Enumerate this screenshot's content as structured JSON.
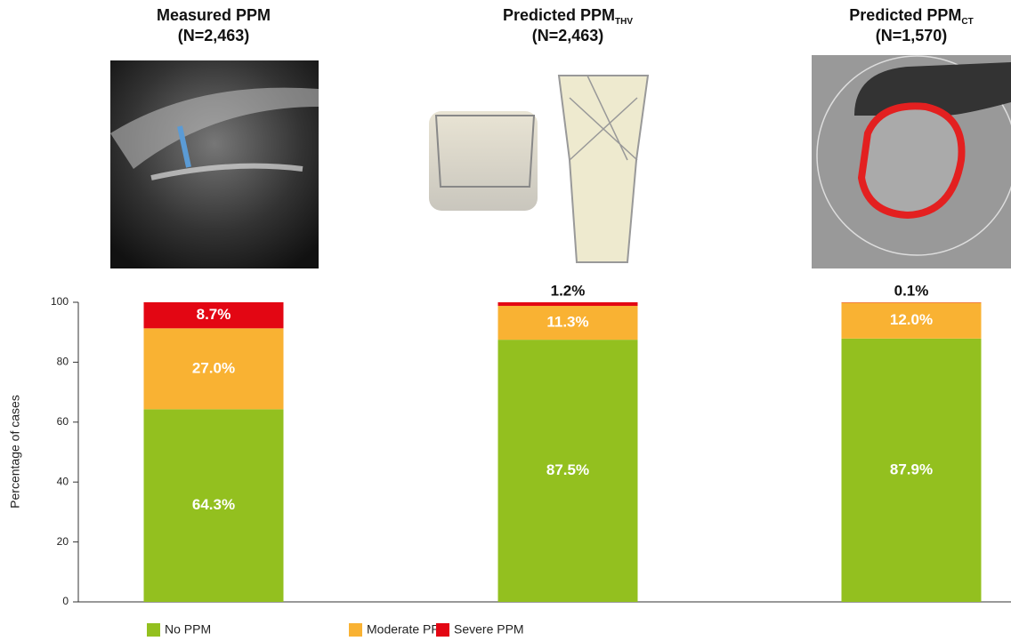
{
  "chart_data": {
    "type": "bar",
    "stacked": true,
    "categories": [
      "Measured PPM",
      "Predicted PPM",
      "Predicted PPM"
    ],
    "category_subscripts": [
      null,
      "THV",
      "CT"
    ],
    "category_counts": [
      "(N=2,463)",
      "(N=2,463)",
      "(N=1,570)"
    ],
    "y_label": "Percentage of cases",
    "ylim": [
      0,
      100
    ],
    "yticks": [
      0,
      20,
      40,
      60,
      80,
      100
    ],
    "series": [
      {
        "name": "No PPM",
        "color": "#93c01f",
        "values": [
          64.3,
          87.5,
          87.9
        ],
        "value_labels": [
          "64.3%",
          "87.5%",
          "87.9%"
        ]
      },
      {
        "name": "Moderate PPM",
        "color": "#f9b233",
        "values": [
          27.0,
          11.3,
          12.0
        ],
        "value_labels": [
          "27.0%",
          "11.3%",
          "12.0%"
        ]
      },
      {
        "name": "Severe PPM",
        "color": "#e30613",
        "values": [
          8.7,
          1.2,
          0.1
        ],
        "value_labels": [
          "8.7%",
          "1.2%",
          "0.1%"
        ]
      }
    ],
    "legend": "bottom-left"
  }
}
